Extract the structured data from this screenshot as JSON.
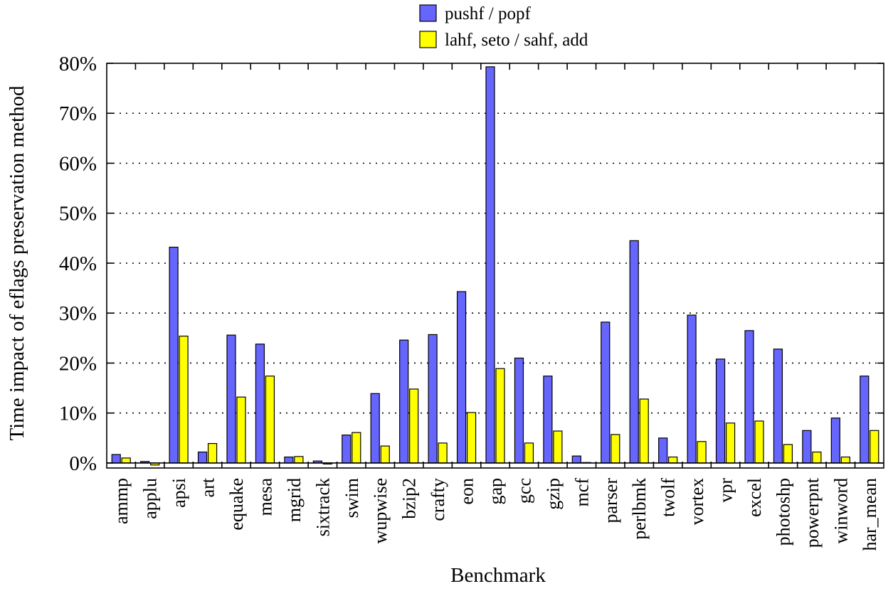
{
  "chart_data": {
    "type": "bar",
    "xlabel": "Benchmark",
    "ylabel": "Time impact of eflags preservation method",
    "ylim": [
      -1,
      80
    ],
    "yticks": [
      0,
      10,
      20,
      30,
      40,
      50,
      60,
      70,
      80
    ],
    "ytick_labels": [
      "0%",
      "10%",
      "20%",
      "30%",
      "40%",
      "50%",
      "60%",
      "70%",
      "80%"
    ],
    "grid": true,
    "legend_position": "top-center",
    "categories": [
      "ammp",
      "applu",
      "apsi",
      "art",
      "equake",
      "mesa",
      "mgrid",
      "sixtrack",
      "swim",
      "wupwise",
      "bzip2",
      "crafty",
      "eon",
      "gap",
      "gcc",
      "gzip",
      "mcf",
      "parser",
      "perlbmk",
      "twolf",
      "vortex",
      "vpr",
      "excel",
      "photoshp",
      "powerpnt",
      "winword",
      "har_mean"
    ],
    "series": [
      {
        "name": "pushf / popf",
        "color": "#6666ff",
        "values": [
          1.7,
          0.3,
          43.2,
          2.2,
          25.6,
          23.8,
          1.2,
          0.4,
          5.6,
          13.9,
          24.6,
          25.7,
          34.3,
          79.3,
          21.0,
          17.4,
          1.4,
          28.2,
          44.5,
          5.0,
          29.6,
          20.8,
          26.5,
          22.8,
          6.5,
          9.0,
          17.4
        ]
      },
      {
        "name": "lahf, seto / sahf, add",
        "color": "#ffff00",
        "values": [
          1.0,
          -0.4,
          25.4,
          3.9,
          13.2,
          17.4,
          1.3,
          -0.2,
          6.1,
          3.4,
          14.8,
          4.0,
          10.1,
          18.9,
          4.0,
          6.4,
          0.1,
          5.7,
          12.8,
          1.2,
          4.3,
          8.0,
          8.4,
          3.7,
          2.2,
          1.2,
          6.5
        ]
      }
    ]
  }
}
